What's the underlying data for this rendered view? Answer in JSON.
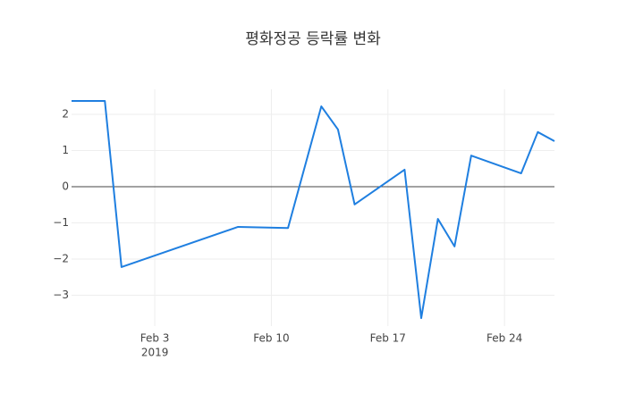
{
  "chart_data": {
    "type": "line",
    "title": "평화정공 등락률 변화",
    "x": [
      "2019-01-29",
      "2019-01-30",
      "2019-01-31",
      "2019-02-01",
      "2019-02-08",
      "2019-02-11",
      "2019-02-13",
      "2019-02-14",
      "2019-02-15",
      "2019-02-18",
      "2019-02-19",
      "2019-02-20",
      "2019-02-21",
      "2019-02-22",
      "2019-02-25",
      "2019-02-26",
      "2019-02-27"
    ],
    "series": [
      {
        "color": "#1f7fe0",
        "values": [
          2.37,
          2.37,
          2.37,
          -2.22,
          -1.11,
          -1.14,
          2.22,
          1.58,
          -0.49,
          0.47,
          -3.63,
          -0.89,
          -1.65,
          0.86,
          0.37,
          1.51,
          1.26
        ]
      }
    ],
    "xlim": [
      "2019-01-29",
      "2019-02-27"
    ],
    "xticks": [
      {
        "value": "2019-02-03",
        "label": "Feb 3",
        "sublabel": "2019"
      },
      {
        "value": "2019-02-10",
        "label": "Feb 10"
      },
      {
        "value": "2019-02-17",
        "label": "Feb 17"
      },
      {
        "value": "2019-02-24",
        "label": "Feb 24"
      }
    ],
    "ylim": [
      -3.85,
      2.69
    ],
    "yticks": [
      {
        "value": -3,
        "label": "−3"
      },
      {
        "value": -2,
        "label": "−2"
      },
      {
        "value": -1,
        "label": "−1"
      },
      0,
      1,
      2
    ],
    "grid": true
  }
}
